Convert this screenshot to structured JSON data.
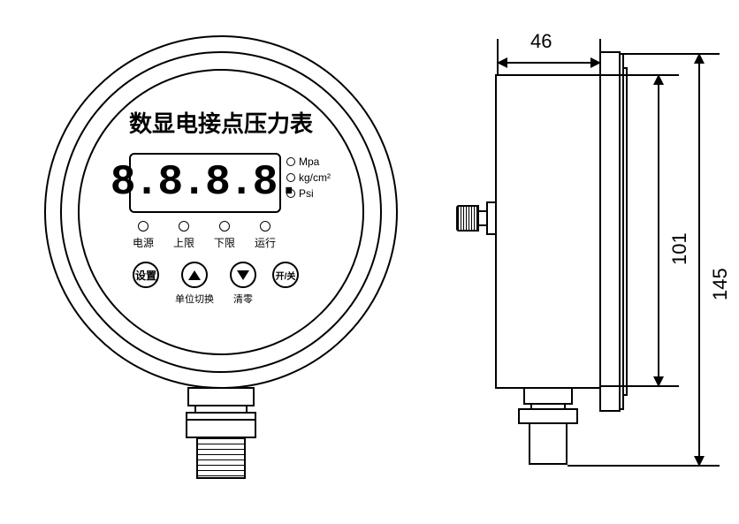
{
  "diagram_type": "technical_drawing",
  "product_title": "数显电接点压力表",
  "display": {
    "digits": "8.8.8.8.",
    "segment_style": "seven-segment"
  },
  "units": [
    {
      "label": "Mpa"
    },
    {
      "label": "kg/cm²"
    },
    {
      "label": "Psi"
    }
  ],
  "leds": [
    {
      "label": "电源"
    },
    {
      "label": "上限"
    },
    {
      "label": "下限"
    },
    {
      "label": "运行"
    }
  ],
  "buttons": [
    {
      "label": "设置",
      "sub": ""
    },
    {
      "label": "▲",
      "sub": "单位切换",
      "icon": "up"
    },
    {
      "label": "▼",
      "sub": "清零",
      "icon": "down"
    },
    {
      "label": "开/关",
      "sub": ""
    }
  ],
  "dimensions": {
    "depth": "46",
    "body_height": "101",
    "total_height": "145"
  },
  "colors": {
    "stroke": "#000000",
    "background": "#ffffff"
  },
  "line_weights": {
    "outer": 2.5,
    "inner": 2
  }
}
